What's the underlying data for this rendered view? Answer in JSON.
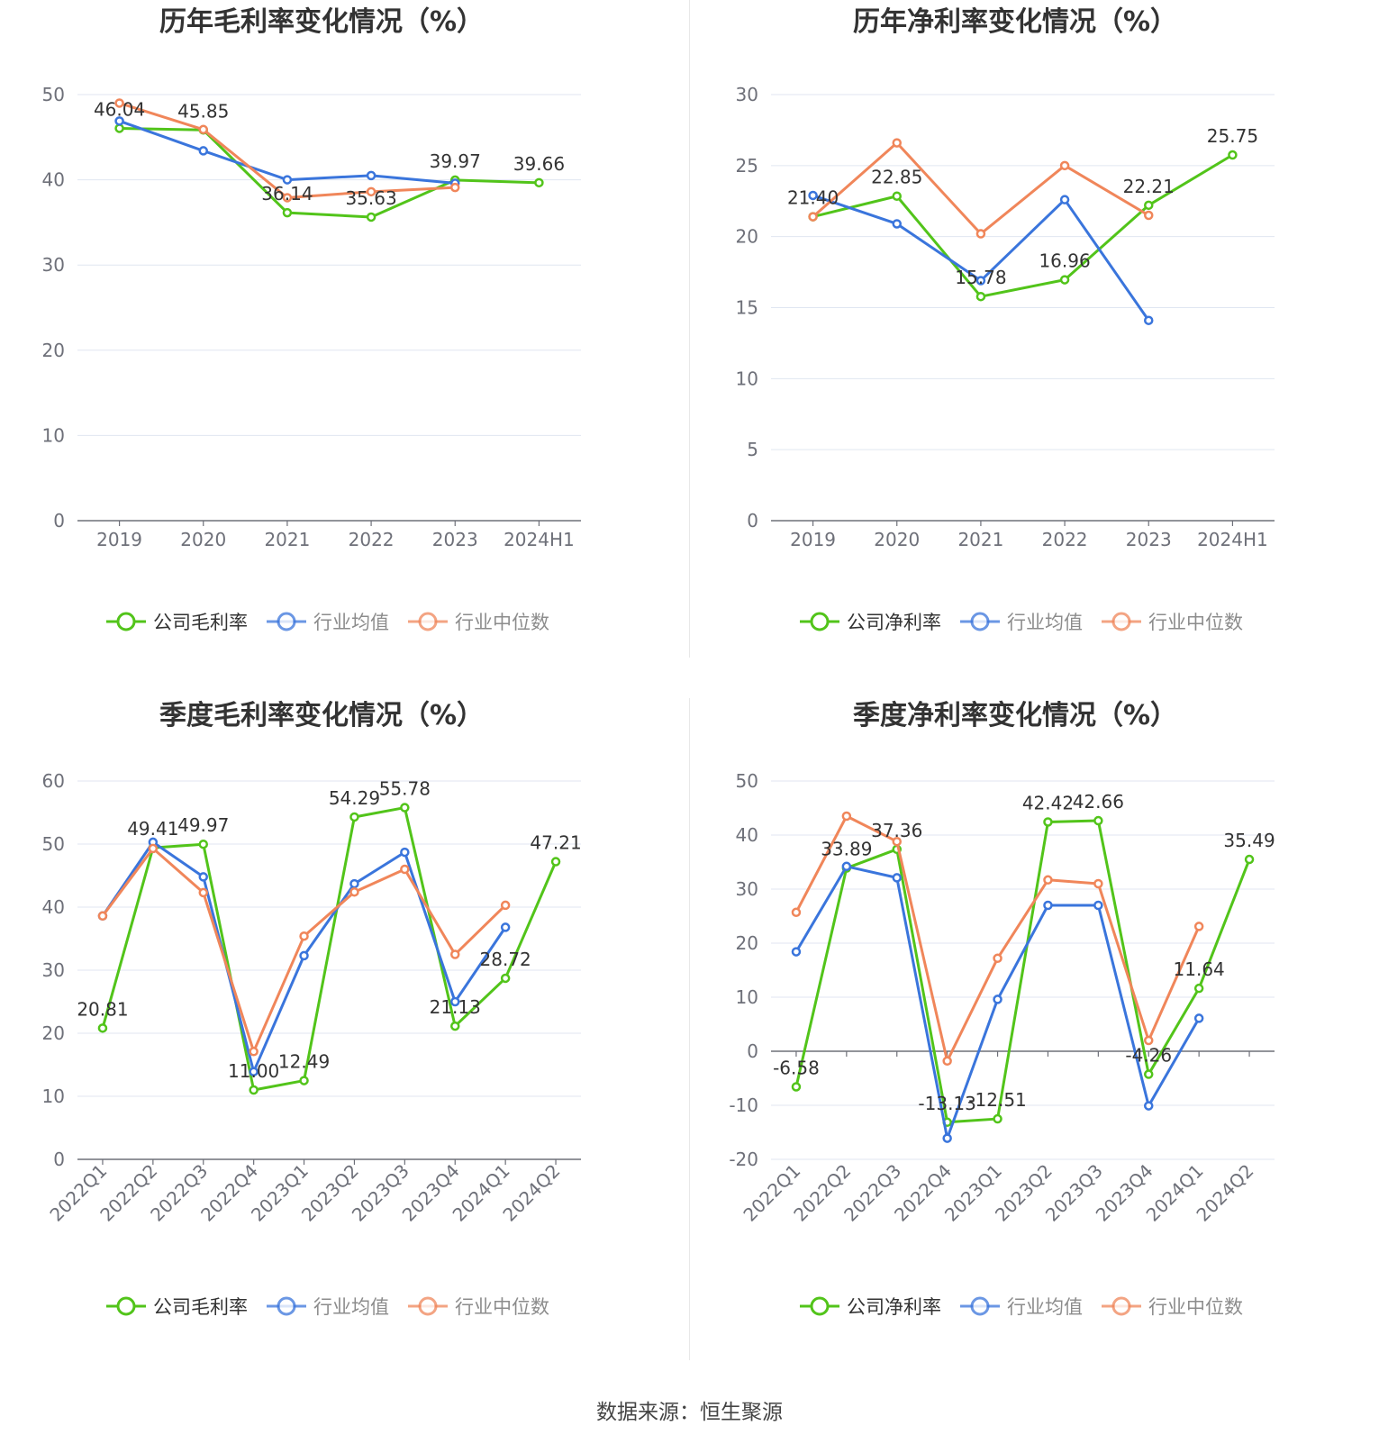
{
  "colors": {
    "company": "#52c41a",
    "avg": "#3a75dc",
    "median": "#f0865a",
    "grid": "#e0e6f1",
    "axis": "#6e7079"
  },
  "legend_names": {
    "gross": [
      "公司毛利率",
      "行业均值",
      "行业中位数"
    ],
    "net": [
      "公司净利率",
      "行业均值",
      "行业中位数"
    ]
  },
  "footer": {
    "source": "数据来源：恒生聚源"
  },
  "chart_data": [
    {
      "type": "line",
      "title": "历年毛利率变化情况（%）",
      "categories": [
        "2019",
        "2020",
        "2021",
        "2022",
        "2023",
        "2024H1"
      ],
      "ylim": [
        0,
        50
      ],
      "yticks": [
        0,
        10,
        20,
        30,
        40,
        50
      ],
      "legend": "bottom",
      "series": [
        {
          "name": "公司毛利率",
          "values": [
            46.04,
            45.85,
            36.14,
            35.63,
            39.97,
            39.66
          ],
          "labels": [
            "46.04",
            "45.85",
            "36.14",
            "35.63",
            "39.97",
            "39.66"
          ]
        },
        {
          "name": "行业均值",
          "values": [
            46.9,
            43.4,
            40.0,
            40.5,
            39.6,
            null
          ]
        },
        {
          "name": "行业中位数",
          "values": [
            49.0,
            45.9,
            37.9,
            38.6,
            39.1,
            null
          ]
        }
      ]
    },
    {
      "type": "line",
      "title": "历年净利率变化情况（%）",
      "categories": [
        "2019",
        "2020",
        "2021",
        "2022",
        "2023",
        "2024H1"
      ],
      "ylim": [
        0,
        30
      ],
      "yticks": [
        0,
        5,
        10,
        15,
        20,
        25,
        30
      ],
      "legend": "bottom",
      "series": [
        {
          "name": "公司净利率",
          "values": [
            21.4,
            22.85,
            15.78,
            16.96,
            22.21,
            25.75
          ],
          "labels": [
            "21.40",
            "22.85",
            "15.78",
            "16.96",
            "22.21",
            "25.75"
          ]
        },
        {
          "name": "行业均值",
          "values": [
            22.9,
            20.9,
            16.9,
            22.6,
            14.1,
            null
          ]
        },
        {
          "name": "行业中位数",
          "values": [
            21.4,
            26.6,
            20.2,
            25.0,
            21.5,
            null
          ]
        }
      ]
    },
    {
      "type": "line",
      "title": "季度毛利率变化情况（%）",
      "categories": [
        "2022Q1",
        "2022Q2",
        "2022Q3",
        "2022Q4",
        "2023Q1",
        "2023Q2",
        "2023Q3",
        "2023Q4",
        "2024Q1",
        "2024Q2"
      ],
      "ylim": [
        0,
        60
      ],
      "yticks": [
        0,
        10,
        20,
        30,
        40,
        50,
        60
      ],
      "legend": "bottom",
      "series": [
        {
          "name": "公司毛利率",
          "values": [
            20.81,
            49.41,
            49.97,
            11.0,
            12.49,
            54.29,
            55.78,
            21.13,
            28.72,
            47.21
          ],
          "labels": [
            "20.81",
            "49.41",
            "49.97",
            "11.00",
            "12.49",
            "54.29",
            "55.78",
            "21.13",
            "28.72",
            "47.21"
          ]
        },
        {
          "name": "行业均值",
          "values": [
            38.6,
            50.3,
            44.8,
            13.9,
            32.3,
            43.7,
            48.7,
            25.0,
            36.8,
            null
          ]
        },
        {
          "name": "行业中位数",
          "values": [
            38.6,
            49.3,
            42.3,
            17.1,
            35.4,
            42.4,
            46.0,
            32.5,
            40.3,
            null
          ]
        }
      ]
    },
    {
      "type": "line",
      "title": "季度净利率变化情况（%）",
      "categories": [
        "2022Q1",
        "2022Q2",
        "2022Q3",
        "2022Q4",
        "2023Q1",
        "2023Q2",
        "2023Q3",
        "2023Q4",
        "2024Q1",
        "2024Q2"
      ],
      "ylim": [
        -20,
        50
      ],
      "yticks": [
        -20,
        -10,
        0,
        10,
        20,
        30,
        40,
        50
      ],
      "legend": "bottom",
      "series": [
        {
          "name": "公司净利率",
          "values": [
            -6.58,
            33.89,
            37.36,
            -13.13,
            -12.51,
            42.42,
            42.66,
            -4.26,
            11.64,
            35.49
          ],
          "labels": [
            "-6.58",
            "33.89",
            "37.36",
            "-13.13",
            "-12.51",
            "42.42",
            "42.66",
            "-4.26",
            "11.64",
            "35.49"
          ]
        },
        {
          "name": "行业均值",
          "values": [
            18.4,
            34.2,
            32.1,
            -16.1,
            9.6,
            27.0,
            27.0,
            -10.1,
            6.1,
            null
          ]
        },
        {
          "name": "行业中位数",
          "values": [
            25.7,
            43.5,
            38.8,
            -1.8,
            17.2,
            31.7,
            31.0,
            2.0,
            23.1,
            null
          ]
        }
      ]
    }
  ]
}
